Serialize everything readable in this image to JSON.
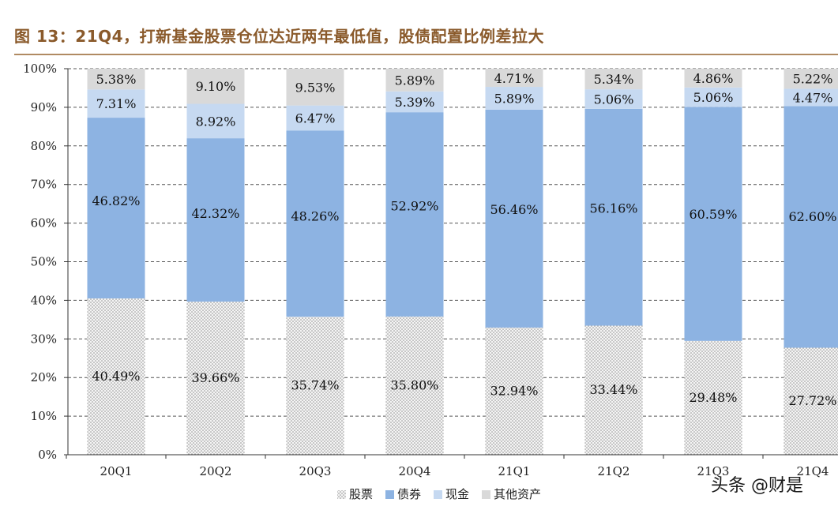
{
  "chart_data": {
    "type": "bar",
    "stacked": true,
    "title": "图 13：21Q4，打新基金股票仓位达近两年最低值，股债配置比例差拉大",
    "categories": [
      "20Q1",
      "20Q2",
      "20Q3",
      "20Q4",
      "21Q1",
      "21Q2",
      "21Q3",
      "21Q4"
    ],
    "series": [
      {
        "name": "股票",
        "values": [
          40.49,
          39.66,
          35.74,
          35.8,
          32.94,
          33.44,
          29.48,
          27.72
        ],
        "labels": [
          "40.49%",
          "39.66%",
          "35.74%",
          "35.80%",
          "32.94%",
          "33.44%",
          "29.48%",
          "27.72%"
        ]
      },
      {
        "name": "债券",
        "values": [
          46.82,
          42.32,
          48.26,
          52.92,
          56.46,
          56.16,
          60.59,
          62.6
        ],
        "labels": [
          "46.82%",
          "42.32%",
          "48.26%",
          "52.92%",
          "56.46%",
          "56.16%",
          "60.59%",
          "62.60%"
        ]
      },
      {
        "name": "现金",
        "values": [
          7.31,
          8.92,
          6.47,
          5.39,
          5.89,
          5.06,
          5.06,
          4.47
        ],
        "labels": [
          "7.31%",
          "8.92%",
          "6.47%",
          "5.39%",
          "5.89%",
          "5.06%",
          "5.06%",
          "4.47%"
        ]
      },
      {
        "name": "其他资产",
        "values": [
          5.38,
          9.1,
          9.53,
          5.89,
          4.71,
          5.34,
          4.86,
          5.22
        ],
        "labels": [
          "5.38%",
          "9.10%",
          "9.53%",
          "5.89%",
          "4.71%",
          "5.34%",
          "4.86%",
          "5.22%"
        ]
      }
    ],
    "colors": [
      "#f2f2f2",
      "#8db3e2",
      "#c6d9f1",
      "#d9d9d9"
    ],
    "ylim": [
      0,
      100
    ],
    "yticks": [
      "0%",
      "10%",
      "20%",
      "30%",
      "40%",
      "50%",
      "60%",
      "70%",
      "80%",
      "90%",
      "100%"
    ],
    "grid": true,
    "legend": "bottom",
    "xlabel": "",
    "ylabel": ""
  },
  "watermark": "头条 @财是"
}
